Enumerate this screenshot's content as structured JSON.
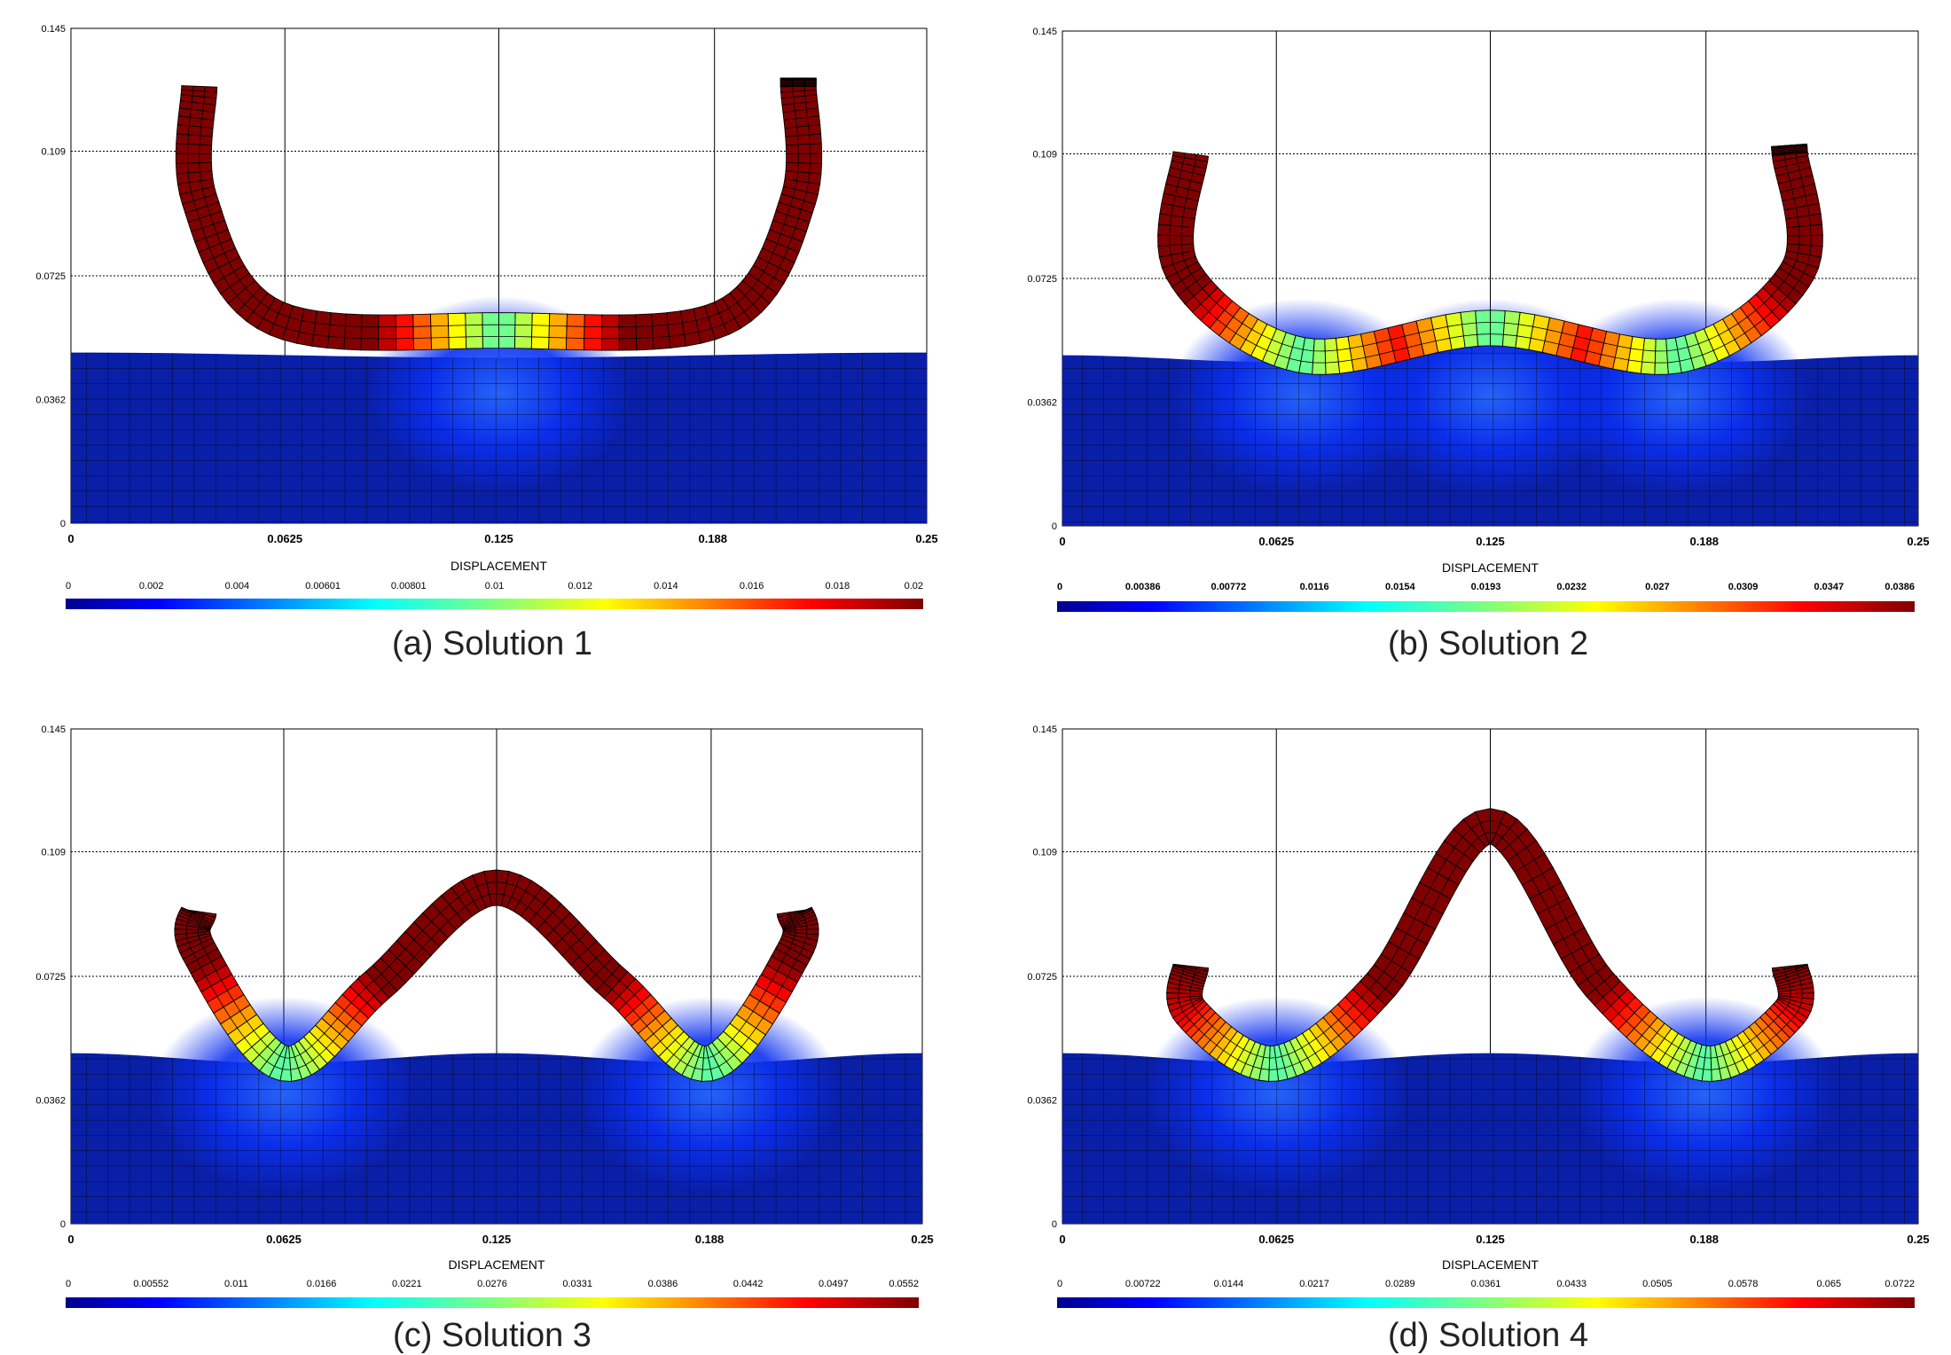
{
  "figure": {
    "panels": [
      {
        "caption": "(a) Solution 1",
        "colorbar": {
          "title": "DISPLACEMENT",
          "ticks": [
            "0",
            "0.002",
            "0.004",
            "0.00601",
            "0.00801",
            "0.01",
            "0.012",
            "0.014",
            "0.016",
            "0.018",
            "0.02"
          ],
          "max": 0.02
        },
        "x_ticks": [
          "0",
          "0.0625",
          "0.125",
          "0.188",
          "0.25"
        ],
        "y_ticks": [
          "0",
          "0.0362",
          "0.0725",
          "0.109",
          "0.145"
        ],
        "arm_top": 0.128,
        "shape": [
          [
            0.0375,
            0.059
          ],
          [
            0.0375,
            0.095
          ],
          [
            0.06,
            0.06
          ],
          [
            0.125,
            0.0565
          ],
          [
            0.19,
            0.06
          ],
          [
            0.2125,
            0.095
          ],
          [
            0.2125,
            0.128
          ]
        ],
        "contacts": [
          [
            0.125,
            0.0565
          ]
        ],
        "body_surface": [
          0,
          -0.0015,
          0
        ]
      },
      {
        "caption": "(b) Solution 2",
        "colorbar": {
          "title": "DISPLACEMENT",
          "ticks": [
            "0",
            "0.00386",
            "0.00772",
            "0.0116",
            "0.0154",
            "0.0193",
            "0.0232",
            "0.027",
            "0.0309",
            "0.0347",
            "0.0386"
          ],
          "max": 0.0386
        },
        "x_ticks": [
          "0",
          "0.0625",
          "0.125",
          "0.188",
          "0.25"
        ],
        "y_ticks": [
          "0",
          "0.0362",
          "0.0725",
          "0.109",
          "0.145"
        ],
        "arm_top": 0.109,
        "shape": [
          [
            0.0375,
            0.059
          ],
          [
            0.035,
            0.075
          ],
          [
            0.07,
            0.05
          ],
          [
            0.125,
            0.058
          ],
          [
            0.18,
            0.05
          ],
          [
            0.215,
            0.075
          ],
          [
            0.2125,
            0.109
          ]
        ],
        "contacts": [
          [
            0.07,
            0.05
          ],
          [
            0.18,
            0.05
          ],
          [
            0.125,
            0.058
          ]
        ],
        "body_surface": [
          0,
          -0.002,
          0.008,
          -0.002,
          0
        ]
      },
      {
        "caption": "(c) Solution 3",
        "colorbar": {
          "title": "DISPLACEMENT",
          "ticks": [
            "0",
            "0.00552",
            "0.011",
            "0.0166",
            "0.0221",
            "0.0276",
            "0.0331",
            "0.0386",
            "0.0442",
            "0.0497",
            "0.0552"
          ],
          "max": 0.0552
        },
        "x_ticks": [
          "0",
          "0.0625",
          "0.125",
          "0.188",
          "0.25"
        ],
        "y_ticks": [
          "0",
          "0.0362",
          "0.0725",
          "0.109",
          "0.145"
        ],
        "arm_top": 0.0915,
        "shape": [
          [
            0.0375,
            0.047
          ],
          [
            0.0375,
            0.08
          ],
          [
            0.0625,
            0.047
          ],
          [
            0.09,
            0.07
          ],
          [
            0.125,
            0.0985
          ],
          [
            0.16,
            0.07
          ],
          [
            0.1875,
            0.047
          ],
          [
            0.2125,
            0.08
          ]
        ],
        "contacts": [
          [
            0.0625,
            0.047
          ],
          [
            0.1875,
            0.047
          ]
        ],
        "body_surface": [
          0,
          -0.003,
          0,
          -0.003,
          0
        ]
      },
      {
        "caption": "(d) Solution 4",
        "colorbar": {
          "title": "DISPLACEMENT",
          "ticks": [
            "0",
            "0.00722",
            "0.0144",
            "0.0217",
            "0.0289",
            "0.0361",
            "0.0433",
            "0.0505",
            "0.0578",
            "0.065",
            "0.0722"
          ],
          "max": 0.0722
        },
        "x_ticks": [
          "0",
          "0.0625",
          "0.125",
          "0.188",
          "0.25"
        ],
        "y_ticks": [
          "0",
          "0.0362",
          "0.0725",
          "0.109",
          "0.145"
        ],
        "arm_top": 0.0755,
        "shape": [
          [
            0.0375,
            0.047
          ],
          [
            0.0375,
            0.062
          ],
          [
            0.0625,
            0.047
          ],
          [
            0.093,
            0.07
          ],
          [
            0.125,
            0.1165
          ],
          [
            0.157,
            0.07
          ],
          [
            0.1875,
            0.047
          ],
          [
            0.2125,
            0.062
          ]
        ],
        "contacts": [
          [
            0.0625,
            0.047
          ],
          [
            0.1875,
            0.047
          ]
        ],
        "body_surface": [
          0,
          -0.003,
          0,
          -0.003,
          0
        ]
      }
    ]
  }
}
